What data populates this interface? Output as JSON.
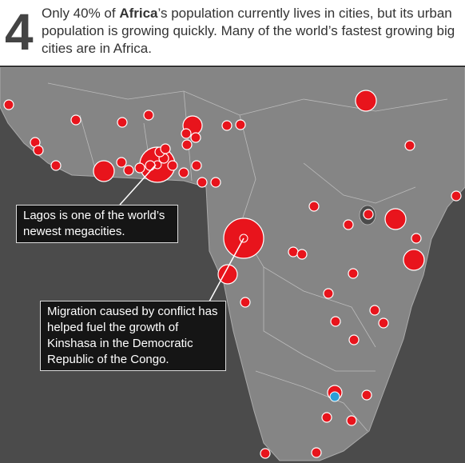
{
  "header": {
    "number": "4",
    "text_before": "Only 40% of ",
    "text_bold": "Africa",
    "text_after": "’s population currently lives in cities, but its urban population is growing quickly. Many of the world’s fastest growing big cities are in Africa."
  },
  "callouts": [
    {
      "text": "Lagos is one of the world’s newest megacities."
    },
    {
      "text": "Migration caused by conflict has helped fuel the growth of Kinshasa in the Democratic Republic of the Congo."
    }
  ]
}
